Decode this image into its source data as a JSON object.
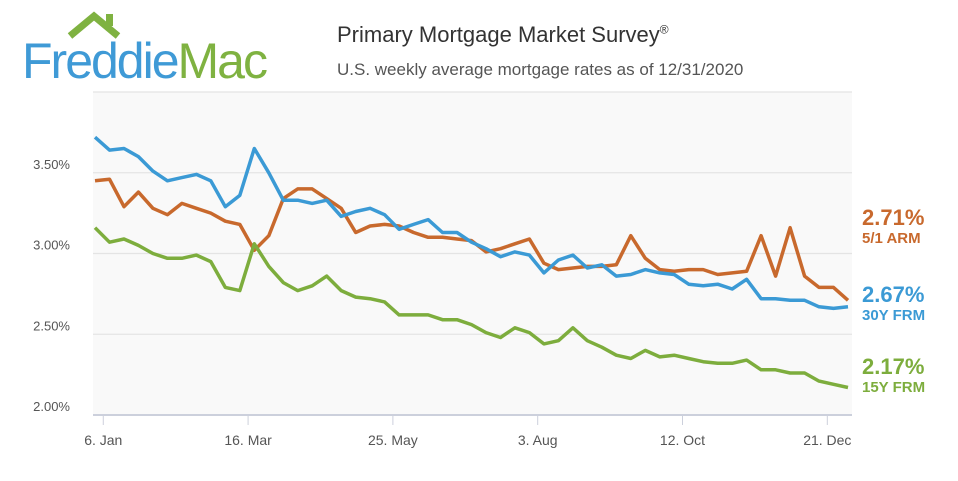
{
  "header": {
    "logo_text": "FreddieMac",
    "title": "Primary Mortgage Market Survey",
    "title_mark": "®",
    "subtitle": "U.S. weekly average mortgage rates as of 12/31/2020"
  },
  "colors": {
    "arm": "#c8692d",
    "frm30": "#3b9ad5",
    "frm15": "#7dad3d",
    "logo_blue": "#3f9ad6",
    "logo_green": "#7fb241"
  },
  "chart_data": {
    "type": "line",
    "title": "Primary Mortgage Market Survey",
    "subtitle": "U.S. weekly average mortgage rates as of 12/31/2020",
    "xlabel": "",
    "ylabel": "",
    "ylim": [
      2.0,
      4.0
    ],
    "yticks": [
      "2.00%",
      "2.50%",
      "3.00%",
      "3.50%"
    ],
    "ytick_values": [
      2.0,
      2.5,
      3.0,
      3.5
    ],
    "xticks": [
      "6. Jan",
      "16. Mar",
      "25. May",
      "3. Aug",
      "12. Oct",
      "21. Dec"
    ],
    "xtick_dates": [
      "2020-01-06",
      "2020-03-16",
      "2020-05-25",
      "2020-08-03",
      "2020-10-12",
      "2020-12-21"
    ],
    "xlim": [
      "2020-01-02",
      "2020-12-31"
    ],
    "grid": true,
    "legend": "right",
    "x_start": "2020-01-02",
    "x_interval": "weekly",
    "series": [
      {
        "name": "5/1 ARM",
        "last_label": "2.71%",
        "color": "#c8692d",
        "values": [
          3.45,
          3.46,
          3.29,
          3.38,
          3.28,
          3.24,
          3.31,
          3.28,
          3.25,
          3.2,
          3.18,
          3.02,
          3.11,
          3.34,
          3.4,
          3.4,
          3.34,
          3.28,
          3.13,
          3.17,
          3.18,
          3.17,
          3.13,
          3.1,
          3.1,
          3.09,
          3.08,
          3.01,
          3.03,
          3.06,
          3.09,
          2.94,
          2.9,
          2.91,
          2.92,
          2.92,
          2.93,
          3.11,
          2.97,
          2.9,
          2.89,
          2.9,
          2.9,
          2.87,
          2.88,
          2.89,
          3.11,
          2.86,
          3.16,
          2.86,
          2.79,
          2.79,
          2.71
        ]
      },
      {
        "name": "30Y FRM",
        "last_label": "2.67%",
        "color": "#3b9ad5",
        "values": [
          3.72,
          3.64,
          3.65,
          3.6,
          3.51,
          3.45,
          3.47,
          3.49,
          3.45,
          3.29,
          3.36,
          3.65,
          3.5,
          3.33,
          3.33,
          3.31,
          3.33,
          3.23,
          3.26,
          3.28,
          3.24,
          3.15,
          3.18,
          3.21,
          3.13,
          3.13,
          3.07,
          3.03,
          2.98,
          3.01,
          2.99,
          2.88,
          2.96,
          2.99,
          2.91,
          2.93,
          2.86,
          2.87,
          2.9,
          2.88,
          2.87,
          2.81,
          2.8,
          2.81,
          2.78,
          2.84,
          2.72,
          2.72,
          2.71,
          2.71,
          2.67,
          2.66,
          2.67
        ]
      },
      {
        "name": "15Y FRM",
        "last_label": "2.17%",
        "color": "#7dad3d",
        "values": [
          3.16,
          3.07,
          3.09,
          3.05,
          3.0,
          2.97,
          2.97,
          2.99,
          2.95,
          2.79,
          2.77,
          3.06,
          2.92,
          2.82,
          2.77,
          2.8,
          2.86,
          2.77,
          2.73,
          2.72,
          2.7,
          2.62,
          2.62,
          2.62,
          2.59,
          2.59,
          2.56,
          2.51,
          2.48,
          2.54,
          2.51,
          2.44,
          2.46,
          2.54,
          2.46,
          2.42,
          2.37,
          2.35,
          2.4,
          2.36,
          2.37,
          2.35,
          2.33,
          2.32,
          2.32,
          2.34,
          2.28,
          2.28,
          2.26,
          2.26,
          2.21,
          2.19,
          2.17
        ]
      }
    ]
  }
}
